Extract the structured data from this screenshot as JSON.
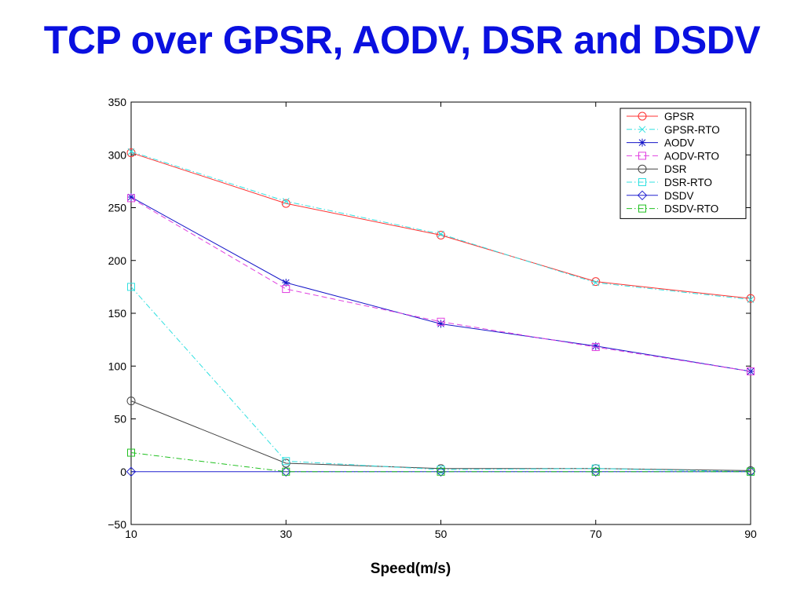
{
  "slide": {
    "title": "TCP over GPSR, AODV, DSR and DSDV"
  },
  "colors": {
    "title": "#0a10e0"
  },
  "chart_data": {
    "type": "line",
    "title": "",
    "xlabel": "Speed(m/s)",
    "ylabel": "",
    "x": [
      10,
      30,
      50,
      70,
      90
    ],
    "xticks": [
      10,
      30,
      50,
      70,
      90
    ],
    "yticks": [
      -50,
      0,
      50,
      100,
      150,
      200,
      250,
      300,
      350
    ],
    "xlim": [
      10,
      90
    ],
    "ylim": [
      -50,
      350
    ],
    "grid": false,
    "legend_position": "top-right",
    "series": [
      {
        "name": "GPSR",
        "values": [
          302,
          254,
          224,
          180,
          164
        ],
        "color": "#ff3030",
        "marker": "circle",
        "dash": "solid"
      },
      {
        "name": "GPSR-RTO",
        "values": [
          303,
          256,
          225,
          179,
          163
        ],
        "color": "#30e0e0",
        "marker": "x",
        "dash": "dashdot"
      },
      {
        "name": "AODV",
        "values": [
          260,
          179,
          140,
          119,
          95
        ],
        "color": "#1515c8",
        "marker": "star",
        "dash": "solid"
      },
      {
        "name": "AODV-RTO",
        "values": [
          259,
          173,
          142,
          118,
          95
        ],
        "color": "#e040e0",
        "marker": "square",
        "dash": "dashed"
      },
      {
        "name": "DSR",
        "values": [
          67,
          8,
          3,
          3,
          1
        ],
        "color": "#444444",
        "marker": "circle",
        "dash": "solid"
      },
      {
        "name": "DSR-RTO",
        "values": [
          175,
          10,
          2,
          3,
          0
        ],
        "color": "#30e0e0",
        "marker": "square",
        "dash": "dashdot"
      },
      {
        "name": "DSDV",
        "values": [
          0,
          0,
          0,
          0,
          0
        ],
        "color": "#2020d0",
        "marker": "diamond",
        "dash": "solid"
      },
      {
        "name": "DSDV-RTO",
        "values": [
          18,
          0,
          0,
          0,
          0
        ],
        "color": "#20c020",
        "marker": "square",
        "dash": "dashdot"
      }
    ]
  }
}
